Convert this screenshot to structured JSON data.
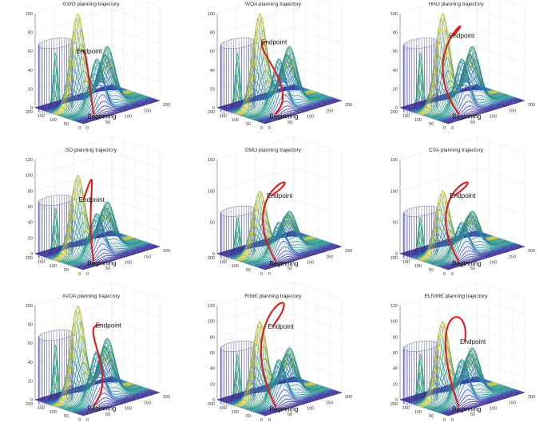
{
  "figure": {
    "layout": "3x3 grid of 3D UAV path planning plots",
    "colors": {
      "trajectory": "#e01b1b",
      "terrain_low": "#3b1f8a",
      "terrain_mid": "#21a08a",
      "terrain_high": "#f2e02a",
      "obstacle": "#6f6fb8"
    }
  },
  "chart_data": [
    {
      "type": "surface3d",
      "title": "GWO planning trajectory",
      "zlim": [
        0,
        100
      ],
      "zticks": [
        "0",
        "20",
        "40",
        "60",
        "80",
        "100"
      ],
      "xticks": [
        "0",
        "50",
        "100",
        "150",
        "200"
      ],
      "yticks": [
        "0",
        "50",
        "100",
        "150",
        "200"
      ],
      "start_label": "Beginning",
      "end_label": "Endpoint",
      "trajectory_shape": "gentle-arc",
      "peak_heights": [
        100,
        60,
        55,
        45
      ],
      "obstacle": {
        "type": "cylinder",
        "height": 70
      }
    },
    {
      "type": "surface3d",
      "title": "WOA planning trajectory",
      "zlim": [
        0,
        100
      ],
      "zticks": [
        "0",
        "20",
        "40",
        "60",
        "80",
        "100"
      ],
      "xticks": [
        "0",
        "50",
        "100",
        "150",
        "200"
      ],
      "yticks": [
        "0",
        "50",
        "100",
        "150",
        "200"
      ],
      "start_label": "Beginning",
      "end_label": "Endpoint",
      "trajectory_shape": "s-curve",
      "peak_heights": [
        100,
        60,
        55,
        45
      ],
      "obstacle": {
        "type": "cylinder",
        "height": 70
      }
    },
    {
      "type": "surface3d",
      "title": "HHO planning trajectory",
      "zlim": [
        0,
        100
      ],
      "zticks": [
        "0",
        "20",
        "40",
        "60",
        "80",
        "100"
      ],
      "xticks": [
        "0",
        "50",
        "100",
        "150",
        "200"
      ],
      "yticks": [
        "0",
        "50",
        "100",
        "150",
        "200"
      ],
      "start_label": "Beginning",
      "end_label": "Endpoint",
      "trajectory_shape": "wide-loop",
      "peak_heights": [
        100,
        60,
        55,
        45
      ],
      "obstacle": {
        "type": "cylinder",
        "height": 70
      }
    },
    {
      "type": "surface3d",
      "title": "SO planning trajectory",
      "zlim": [
        0,
        120
      ],
      "zticks": [
        "0",
        "20",
        "40",
        "60",
        "80",
        "100",
        "120"
      ],
      "xticks": [
        "0",
        "50",
        "100",
        "150",
        "200"
      ],
      "yticks": [
        "0",
        "50",
        "100",
        "150",
        "200"
      ],
      "start_label": "Beginning",
      "end_label": "Endpoint",
      "trajectory_shape": "hook",
      "peak_heights": [
        100,
        60,
        55,
        45
      ],
      "obstacle": {
        "type": "cylinder",
        "height": 70
      }
    },
    {
      "type": "surface3d",
      "title": "DMO planning trajectory",
      "zlim": [
        0,
        150
      ],
      "zticks": [
        "0",
        "50",
        "100",
        "150"
      ],
      "xticks": [
        "0",
        "50",
        "100",
        "150",
        "200"
      ],
      "yticks": [
        "0",
        "50",
        "100",
        "150",
        "200"
      ],
      "start_label": "Beginning",
      "end_label": "Endpoint",
      "trajectory_shape": "big-loop",
      "peak_heights": [
        100,
        60,
        55,
        45
      ],
      "obstacle": {
        "type": "cylinder",
        "height": 70
      }
    },
    {
      "type": "surface3d",
      "title": "CSA planning trajectory",
      "zlim": [
        0,
        150
      ],
      "zticks": [
        "0",
        "50",
        "100",
        "150"
      ],
      "xticks": [
        "0",
        "50",
        "100",
        "150",
        "200"
      ],
      "yticks": [
        "0",
        "50",
        "100",
        "150",
        "200"
      ],
      "start_label": "Beginning",
      "end_label": "Endpoint",
      "trajectory_shape": "big-loop",
      "peak_heights": [
        100,
        60,
        55,
        45
      ],
      "obstacle": {
        "type": "cylinder",
        "height": 70
      }
    },
    {
      "type": "surface3d",
      "title": "AVOA planning trajectory",
      "zlim": [
        0,
        100
      ],
      "zticks": [
        "0",
        "20",
        "40",
        "60",
        "80",
        "100"
      ],
      "xticks": [
        "0",
        "50",
        "100",
        "150",
        "200"
      ],
      "yticks": [
        "0",
        "50",
        "100",
        "150",
        "200"
      ],
      "start_label": "Beginning",
      "end_label": "Endpoint",
      "trajectory_shape": "wave",
      "peak_heights": [
        100,
        60,
        55,
        45
      ],
      "obstacle": {
        "type": "cylinder",
        "height": 70
      }
    },
    {
      "type": "surface3d",
      "title": "RIME planning trajectory",
      "zlim": [
        0,
        120
      ],
      "zticks": [
        "0",
        "20",
        "40",
        "60",
        "80",
        "100",
        "120"
      ],
      "xticks": [
        "0",
        "50",
        "100",
        "150",
        "200"
      ],
      "yticks": [
        "0",
        "50",
        "100",
        "150",
        "200"
      ],
      "start_label": "Beginning",
      "end_label": "Endpoint",
      "trajectory_shape": "tall-loop",
      "peak_heights": [
        100,
        60,
        55,
        45
      ],
      "obstacle": {
        "type": "cylinder",
        "height": 70
      }
    },
    {
      "type": "surface3d",
      "title": "ELRIME planning trajectory",
      "zlim": [
        0,
        120
      ],
      "zticks": [
        "0",
        "20",
        "40",
        "60",
        "80",
        "100",
        "120"
      ],
      "xticks": [
        "0",
        "50",
        "100",
        "150",
        "200"
      ],
      "yticks": [
        "0",
        "50",
        "100",
        "150",
        "200"
      ],
      "start_label": "Beginning",
      "end_label": "Endpoint",
      "trajectory_shape": "arch",
      "peak_heights": [
        100,
        60,
        55,
        45
      ],
      "obstacle": {
        "type": "cylinder",
        "height": 70
      }
    }
  ]
}
